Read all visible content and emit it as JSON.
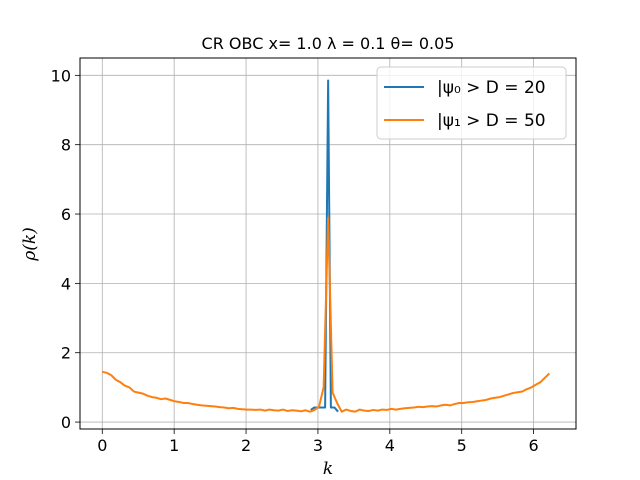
{
  "chart_data": {
    "type": "line",
    "title": "CR OBC x= 1.0 λ = 0.1 θ= 0.05",
    "xlabel": "k",
    "ylabel": "ρ(k)",
    "xlim": [
      -0.31,
      6.59
    ],
    "ylim": [
      -0.2,
      10.5
    ],
    "xticks": [
      0,
      1,
      2,
      3,
      4,
      5,
      6
    ],
    "yticks": [
      0,
      2,
      4,
      6,
      8,
      10
    ],
    "grid": true,
    "legend_position": "top-right",
    "series": [
      {
        "name": "|ψ₀ > D = 20",
        "color": "#1f77b4",
        "x": [
          2.9,
          2.95,
          3.0,
          3.05,
          3.06,
          3.1,
          3.142,
          3.18,
          3.22,
          3.23,
          3.28
        ],
        "y": [
          0.35,
          0.42,
          0.42,
          0.42,
          0.42,
          0.42,
          9.85,
          0.42,
          0.42,
          0.42,
          0.3
        ]
      },
      {
        "name": "|ψ₁ > D = 50",
        "color": "#ff7f0e",
        "x": [
          0.0,
          0.063,
          0.126,
          0.188,
          0.251,
          0.314,
          0.377,
          0.44,
          0.503,
          0.565,
          0.628,
          0.691,
          0.754,
          0.817,
          0.88,
          0.942,
          1.005,
          1.068,
          1.131,
          1.194,
          1.257,
          1.319,
          1.382,
          1.445,
          1.508,
          1.571,
          1.634,
          1.696,
          1.759,
          1.822,
          1.885,
          1.948,
          2.011,
          2.073,
          2.136,
          2.199,
          2.262,
          2.325,
          2.388,
          2.45,
          2.513,
          2.576,
          2.639,
          2.702,
          2.765,
          2.827,
          2.89,
          2.953,
          3.016,
          3.079,
          3.142,
          3.204,
          3.267,
          3.33,
          3.393,
          3.456,
          3.519,
          3.581,
          3.644,
          3.707,
          3.77,
          3.833,
          3.896,
          3.958,
          4.021,
          4.084,
          4.147,
          4.21,
          4.273,
          4.335,
          4.398,
          4.461,
          4.524,
          4.587,
          4.65,
          4.712,
          4.775,
          4.838,
          4.901,
          4.964,
          5.027,
          5.089,
          5.152,
          5.215,
          5.278,
          5.341,
          5.404,
          5.466,
          5.529,
          5.592,
          5.655,
          5.718,
          5.781,
          5.843,
          5.906,
          5.969,
          6.032,
          6.095,
          6.158,
          6.22
        ],
        "y": [
          1.45,
          1.42,
          1.35,
          1.22,
          1.15,
          1.05,
          1.0,
          0.88,
          0.85,
          0.82,
          0.76,
          0.72,
          0.7,
          0.66,
          0.68,
          0.64,
          0.6,
          0.58,
          0.55,
          0.55,
          0.52,
          0.5,
          0.48,
          0.47,
          0.46,
          0.45,
          0.43,
          0.42,
          0.4,
          0.41,
          0.38,
          0.37,
          0.36,
          0.36,
          0.35,
          0.36,
          0.33,
          0.36,
          0.34,
          0.33,
          0.36,
          0.32,
          0.34,
          0.33,
          0.31,
          0.34,
          0.3,
          0.35,
          0.45,
          1.0,
          5.9,
          0.85,
          0.55,
          0.3,
          0.36,
          0.32,
          0.3,
          0.36,
          0.33,
          0.32,
          0.35,
          0.33,
          0.36,
          0.35,
          0.38,
          0.36,
          0.38,
          0.4,
          0.41,
          0.42,
          0.44,
          0.43,
          0.45,
          0.46,
          0.45,
          0.48,
          0.5,
          0.48,
          0.52,
          0.55,
          0.55,
          0.57,
          0.58,
          0.6,
          0.62,
          0.64,
          0.68,
          0.7,
          0.72,
          0.76,
          0.8,
          0.84,
          0.86,
          0.88,
          0.95,
          1.0,
          1.08,
          1.15,
          1.28,
          1.4
        ]
      }
    ]
  }
}
